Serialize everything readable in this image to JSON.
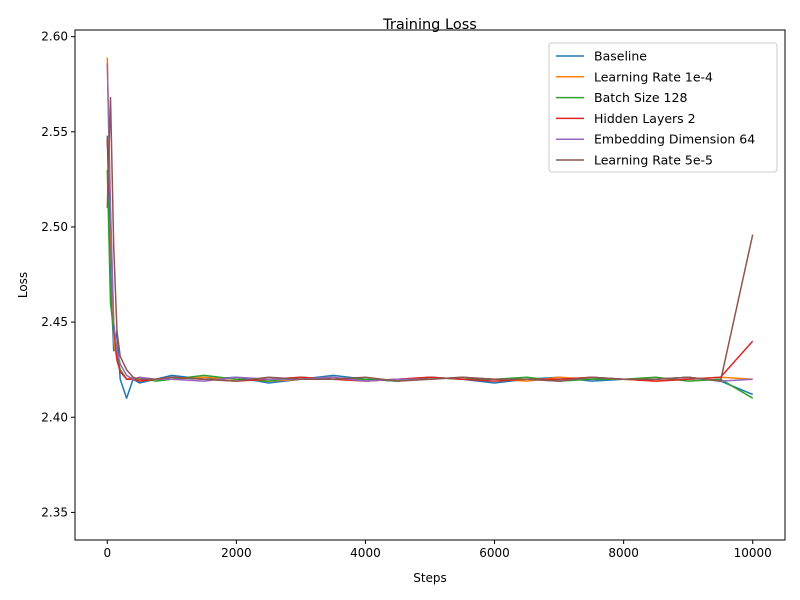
{
  "chart_data": {
    "type": "line",
    "title": "Training Loss",
    "xlabel": "Steps",
    "ylabel": "Loss",
    "xlim": [
      -500,
      10500
    ],
    "ylim": [
      2.3355,
      2.6035
    ],
    "x_ticks": [
      {
        "value": 0,
        "label": "0"
      },
      {
        "value": 2000,
        "label": "2000"
      },
      {
        "value": 4000,
        "label": "4000"
      },
      {
        "value": 6000,
        "label": "6000"
      },
      {
        "value": 8000,
        "label": "8000"
      },
      {
        "value": 10000,
        "label": "10000"
      }
    ],
    "y_ticks": [
      {
        "value": 2.35,
        "label": "2.35"
      },
      {
        "value": 2.4,
        "label": "2.40"
      },
      {
        "value": 2.45,
        "label": "2.45"
      },
      {
        "value": 2.5,
        "label": "2.50"
      },
      {
        "value": 2.55,
        "label": "2.55"
      },
      {
        "value": 2.6,
        "label": "2.60"
      }
    ],
    "grid": false,
    "legend_position": "upper right",
    "series": [
      {
        "name": "Baseline",
        "color": "#1f77b4",
        "x": [
          0,
          50,
          100,
          150,
          200,
          300,
          400,
          500,
          750,
          1000,
          1500,
          2000,
          2500,
          3000,
          3500,
          4000,
          4500,
          5000,
          5500,
          6000,
          6500,
          7000,
          7500,
          8000,
          8500,
          9000,
          9500,
          10000
        ],
        "values": [
          2.548,
          2.475,
          2.435,
          2.445,
          2.42,
          2.41,
          2.42,
          2.418,
          2.42,
          2.422,
          2.42,
          2.421,
          2.418,
          2.42,
          2.422,
          2.42,
          2.419,
          2.421,
          2.42,
          2.418,
          2.42,
          2.421,
          2.419,
          2.42,
          2.42,
          2.421,
          2.419,
          2.412
        ]
      },
      {
        "name": "Learning Rate 1e-4",
        "color": "#ff7f0e",
        "x": [
          0,
          50,
          100,
          150,
          200,
          300,
          400,
          500,
          750,
          1000,
          1500,
          2000,
          2500,
          3000,
          3500,
          4000,
          4500,
          5000,
          5500,
          6000,
          6500,
          7000,
          7500,
          8000,
          8500,
          9000,
          9500,
          10000
        ],
        "values": [
          2.589,
          2.5,
          2.44,
          2.43,
          2.425,
          2.42,
          2.421,
          2.419,
          2.42,
          2.42,
          2.421,
          2.42,
          2.419,
          2.42,
          2.421,
          2.419,
          2.42,
          2.421,
          2.42,
          2.42,
          2.419,
          2.421,
          2.42,
          2.42,
          2.419,
          2.42,
          2.421,
          2.42
        ]
      },
      {
        "name": "Batch Size 128",
        "color": "#2ca02c",
        "x": [
          0,
          50,
          100,
          150,
          200,
          300,
          400,
          500,
          750,
          1000,
          1500,
          2000,
          2500,
          3000,
          3500,
          4000,
          4500,
          5000,
          5500,
          6000,
          6500,
          7000,
          7500,
          8000,
          8500,
          9000,
          9500,
          10000
        ],
        "values": [
          2.53,
          2.46,
          2.445,
          2.432,
          2.425,
          2.42,
          2.42,
          2.421,
          2.419,
          2.42,
          2.422,
          2.42,
          2.419,
          2.421,
          2.42,
          2.42,
          2.419,
          2.421,
          2.42,
          2.42,
          2.421,
          2.419,
          2.42,
          2.42,
          2.421,
          2.419,
          2.42,
          2.41
        ]
      },
      {
        "name": "Hidden Layers 2",
        "color": "#d62728",
        "x": [
          0,
          50,
          100,
          150,
          200,
          300,
          400,
          500,
          750,
          1000,
          1500,
          2000,
          2500,
          3000,
          3500,
          4000,
          4500,
          5000,
          5500,
          6000,
          6500,
          7000,
          7500,
          8000,
          8500,
          9000,
          9500,
          10000
        ],
        "values": [
          2.546,
          2.505,
          2.448,
          2.43,
          2.424,
          2.42,
          2.42,
          2.419,
          2.42,
          2.421,
          2.42,
          2.419,
          2.42,
          2.421,
          2.42,
          2.419,
          2.42,
          2.421,
          2.42,
          2.419,
          2.42,
          2.42,
          2.421,
          2.42,
          2.419,
          2.42,
          2.421,
          2.44
        ]
      },
      {
        "name": "Embedding Dimension 64",
        "color": "#9467bd",
        "x": [
          0,
          50,
          100,
          150,
          200,
          300,
          400,
          500,
          750,
          1000,
          1500,
          2000,
          2500,
          3000,
          3500,
          4000,
          4500,
          5000,
          5500,
          6000,
          6500,
          7000,
          7500,
          8000,
          8500,
          9000,
          9500,
          10000
        ],
        "values": [
          2.586,
          2.51,
          2.45,
          2.435,
          2.428,
          2.422,
          2.42,
          2.421,
          2.42,
          2.42,
          2.419,
          2.421,
          2.42,
          2.42,
          2.421,
          2.419,
          2.42,
          2.42,
          2.421,
          2.42,
          2.42,
          2.419,
          2.421,
          2.42,
          2.42,
          2.421,
          2.419,
          2.42
        ]
      },
      {
        "name": "Learning Rate 5e-5",
        "color": "#8c564b",
        "x": [
          0,
          50,
          100,
          150,
          200,
          300,
          400,
          500,
          750,
          1000,
          1500,
          2000,
          2500,
          3000,
          3500,
          4000,
          4500,
          5000,
          5500,
          6000,
          6500,
          7000,
          7500,
          8000,
          8500,
          9000,
          9500,
          10000
        ],
        "values": [
          2.51,
          2.568,
          2.49,
          2.445,
          2.432,
          2.425,
          2.421,
          2.42,
          2.42,
          2.421,
          2.42,
          2.419,
          2.421,
          2.42,
          2.42,
          2.421,
          2.419,
          2.42,
          2.421,
          2.42,
          2.42,
          2.419,
          2.421,
          2.42,
          2.42,
          2.421,
          2.419,
          2.496
        ]
      }
    ]
  }
}
